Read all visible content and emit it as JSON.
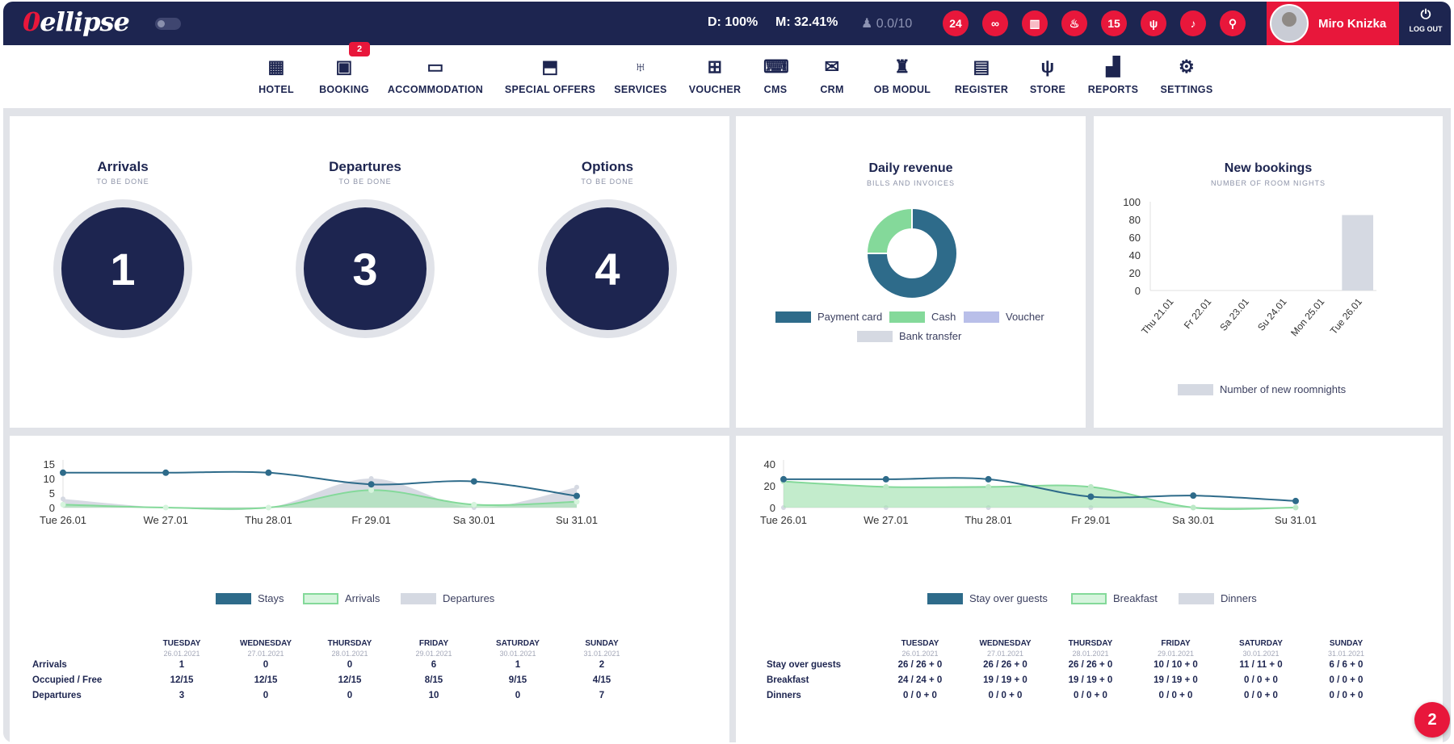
{
  "header": {
    "logo": "ellipse",
    "stat_d": "D: 100%",
    "stat_m": "M: 32.41%",
    "stat_online": "0.0/10",
    "icons": [
      "clock-24-icon",
      "binoculars-icon",
      "bar-chart-icon",
      "hand-coin-icon",
      "calendar-15-icon",
      "cutlery-icon",
      "bell-icon",
      "search-icon"
    ],
    "user": "Miro Knizka",
    "logout": "LOG OUT"
  },
  "nav": [
    {
      "label": "HOTEL",
      "icon": "hotel-icon"
    },
    {
      "label": "BOOKING",
      "icon": "calendar-icon",
      "badge": "2"
    },
    {
      "label": "ACCOMMODATION",
      "icon": "bed-icon"
    },
    {
      "label": "SPECIAL OFFERS",
      "icon": "box-icon"
    },
    {
      "label": "SERVICES",
      "icon": "glasses-icon"
    },
    {
      "label": "VOUCHER",
      "icon": "gift-icon"
    },
    {
      "label": "CMS",
      "icon": "code-icon"
    },
    {
      "label": "CRM",
      "icon": "mail-icon"
    },
    {
      "label": "OB MODUL",
      "icon": "luggage-icon"
    },
    {
      "label": "REGISTER",
      "icon": "wallet-icon"
    },
    {
      "label": "STORE",
      "icon": "cutlery-icon"
    },
    {
      "label": "REPORTS",
      "icon": "report-icon"
    },
    {
      "label": "SETTINGS",
      "icon": "gears-icon"
    }
  ],
  "kpis": [
    {
      "title": "Arrivals",
      "sub": "TO BE DONE",
      "value": "1"
    },
    {
      "title": "Departures",
      "sub": "TO BE DONE",
      "value": "3"
    },
    {
      "title": "Options",
      "sub": "TO BE DONE",
      "value": "4"
    }
  ],
  "revenue": {
    "title": "Daily revenue",
    "sub": "BILLS AND INVOICES",
    "legend": [
      "Payment card",
      "Cash",
      "Voucher",
      "Bank transfer"
    ],
    "colors": [
      "#2e6b8a",
      "#84d99a",
      "#b9bfe9",
      "#d5d9e2"
    ]
  },
  "bookings": {
    "title": "New bookings",
    "sub": "NUMBER OF ROOM NIGHTS",
    "legend": "Number of new roomnights"
  },
  "stays_legend": [
    "Stays",
    "Arrivals",
    "Departures"
  ],
  "guests_legend": [
    "Stay over guests",
    "Breakfast",
    "Dinners"
  ],
  "table_days": [
    {
      "day": "TUESDAY",
      "date": "26.01.2021"
    },
    {
      "day": "WEDNESDAY",
      "date": "27.01.2021"
    },
    {
      "day": "THURSDAY",
      "date": "28.01.2021"
    },
    {
      "day": "FRIDAY",
      "date": "29.01.2021"
    },
    {
      "day": "SATURDAY",
      "date": "30.01.2021"
    },
    {
      "day": "SUNDAY",
      "date": "31.01.2021"
    }
  ],
  "table_left": {
    "rows": [
      {
        "label": "Arrivals",
        "values": [
          "1",
          "0",
          "0",
          "6",
          "1",
          "2"
        ]
      },
      {
        "label": "Occupied / Free",
        "values": [
          "12/15",
          "12/15",
          "12/15",
          "8/15",
          "9/15",
          "4/15"
        ]
      },
      {
        "label": "Departures",
        "values": [
          "3",
          "0",
          "0",
          "10",
          "0",
          "7"
        ]
      }
    ]
  },
  "table_right": {
    "rows": [
      {
        "label": "Stay over guests",
        "values": [
          "26 / 26 + 0",
          "26 / 26 + 0",
          "26 / 26 + 0",
          "10 / 10 + 0",
          "11 / 11 + 0",
          "6 / 6 + 0"
        ]
      },
      {
        "label": "Breakfast",
        "values": [
          "24 / 24 + 0",
          "19 / 19 + 0",
          "19 / 19 + 0",
          "19 / 19 + 0",
          "0 / 0 + 0",
          "0 / 0 + 0"
        ]
      },
      {
        "label": "Dinners",
        "values": [
          "0 / 0 + 0",
          "0 / 0 + 0",
          "0 / 0 + 0",
          "0 / 0 + 0",
          "0 / 0 + 0",
          "0 / 0 + 0"
        ]
      }
    ]
  },
  "fab": "2",
  "chart_data": [
    {
      "type": "pie",
      "title": "Daily revenue",
      "categories": [
        "Payment card",
        "Cash",
        "Voucher",
        "Bank transfer"
      ],
      "values": [
        75,
        25,
        0,
        0
      ]
    },
    {
      "type": "bar",
      "title": "New bookings",
      "categories": [
        "Thu 21.01",
        "Fr 22.01",
        "Sa 23.01",
        "Su 24.01",
        "Mon 25.01",
        "Tue 26.01"
      ],
      "values": [
        0,
        0,
        0,
        0,
        0,
        85
      ],
      "ylim": [
        0,
        100
      ],
      "yticks": [
        0,
        20,
        40,
        60,
        80,
        100
      ],
      "series_name": "Number of new roomnights"
    },
    {
      "type": "line",
      "categories": [
        "Tue 26.01",
        "We 27.01",
        "Thu 28.01",
        "Fr 29.01",
        "Sa 30.01",
        "Su 31.01"
      ],
      "ylim": [
        0,
        15
      ],
      "yticks": [
        0,
        5,
        10,
        15
      ],
      "series": [
        {
          "name": "Stays",
          "values": [
            12,
            12,
            12,
            8,
            9,
            4
          ]
        },
        {
          "name": "Arrivals",
          "values": [
            1,
            0,
            0,
            6,
            1,
            2
          ]
        },
        {
          "name": "Departures",
          "values": [
            3,
            0,
            0,
            10,
            0,
            7
          ]
        }
      ]
    },
    {
      "type": "line",
      "categories": [
        "Tue 26.01",
        "We 27.01",
        "Thu 28.01",
        "Fr 29.01",
        "Sa 30.01",
        "Su 31.01"
      ],
      "ylim": [
        0,
        40
      ],
      "yticks": [
        0,
        20,
        40
      ],
      "series": [
        {
          "name": "Stay over guests",
          "values": [
            26,
            26,
            26,
            10,
            11,
            6
          ]
        },
        {
          "name": "Breakfast",
          "values": [
            24,
            19,
            19,
            19,
            0,
            0
          ]
        },
        {
          "name": "Dinners",
          "values": [
            0,
            0,
            0,
            0,
            0,
            0
          ]
        }
      ]
    }
  ]
}
